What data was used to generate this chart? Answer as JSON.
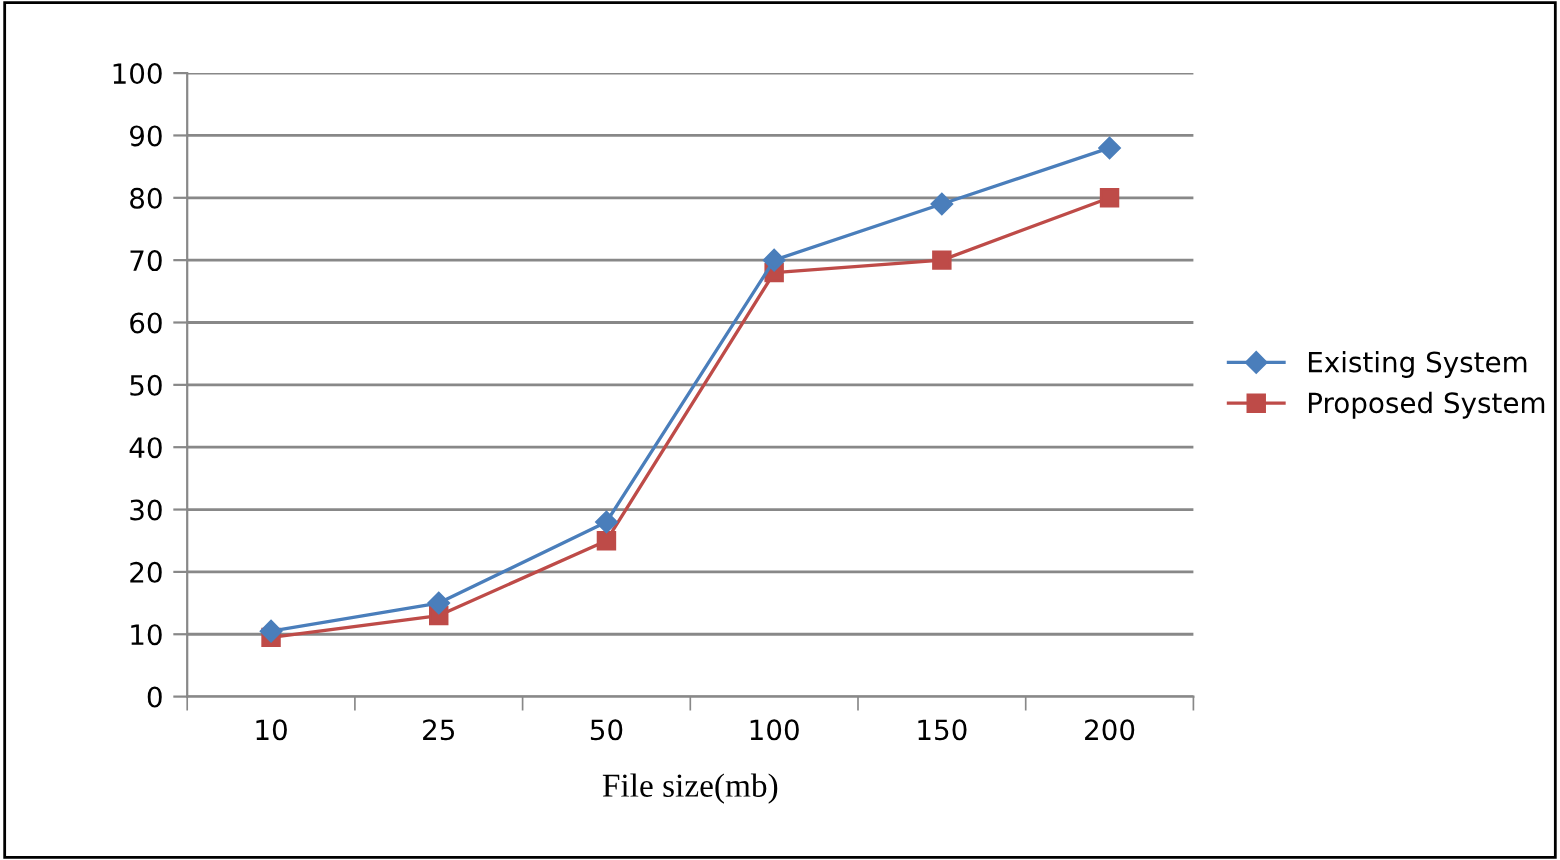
{
  "chart_data": {
    "type": "line",
    "xlabel": "File size(mb)",
    "categories": [
      "10",
      "25",
      "50",
      "100",
      "150",
      "200"
    ],
    "series": [
      {
        "name": "Existing System",
        "color": "#4a7ebb",
        "marker": "diamond",
        "values": [
          10.5,
          15,
          28,
          70,
          79,
          88
        ]
      },
      {
        "name": "Proposed System",
        "color": "#be4b48",
        "marker": "square",
        "values": [
          9.5,
          13,
          25,
          68,
          70,
          80
        ]
      }
    ],
    "ylim": [
      0,
      100
    ],
    "yticks": [
      0,
      10,
      20,
      30,
      40,
      50,
      60,
      70,
      80,
      90,
      100
    ],
    "grid": "y",
    "legend": "right",
    "line_style": "solid"
  }
}
